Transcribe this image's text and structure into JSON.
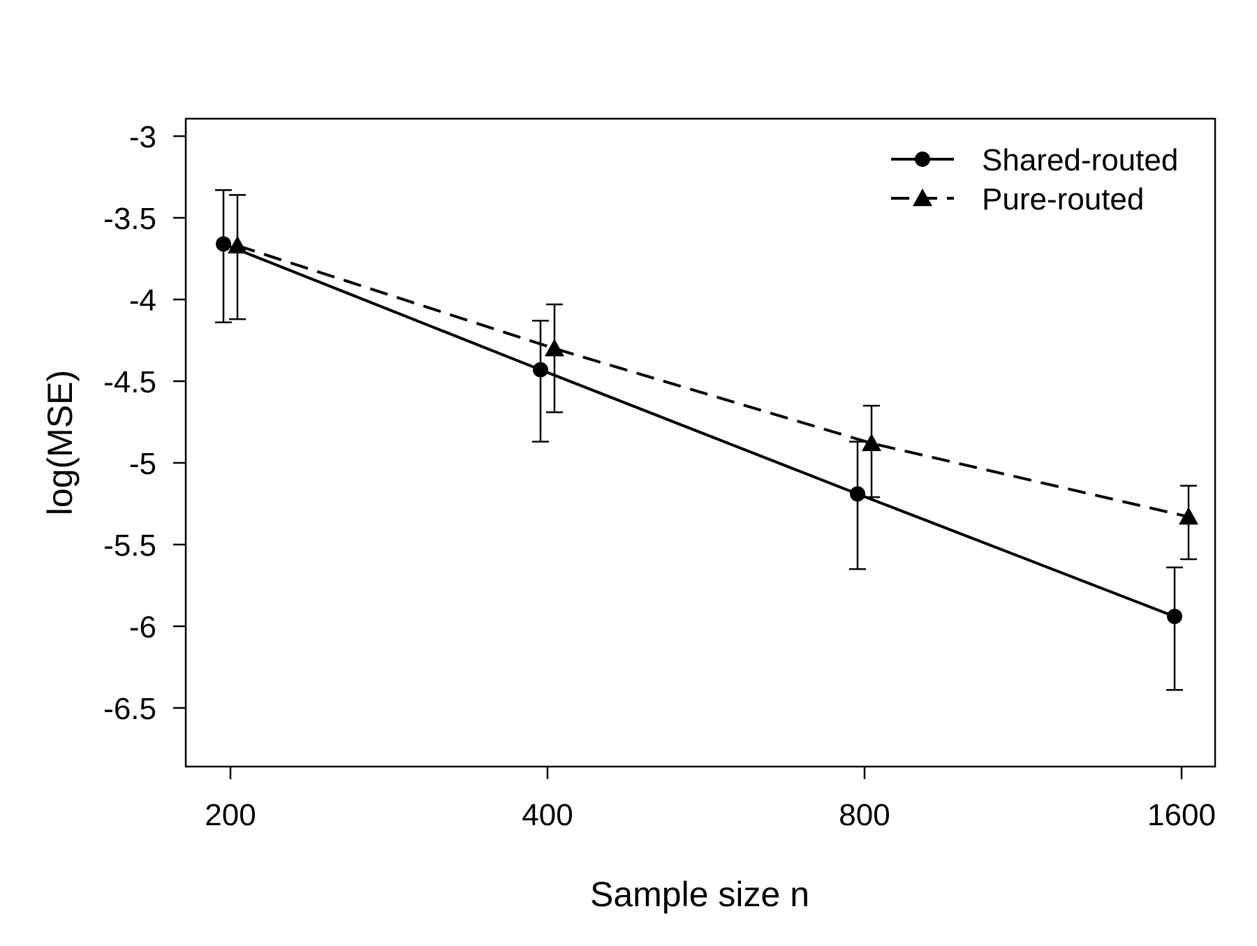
{
  "chart_data": {
    "type": "line",
    "xlabel": "Sample size n",
    "ylabel": "log(MSE)",
    "x_scale": "log2",
    "x": [
      200,
      400,
      800,
      1600
    ],
    "x_tick_labels": [
      "200",
      "400",
      "800",
      "1600"
    ],
    "y_ticks": [
      -3,
      -3.5,
      -4,
      -4.5,
      -5,
      -5.5,
      -6,
      -6.5
    ],
    "y_tick_labels": [
      "-3",
      "-3.5",
      "-4",
      "-4.5",
      "-5",
      "-5.5",
      "-6",
      "-6.5"
    ],
    "ylim": [
      -6.83,
      -2.88
    ],
    "grid": false,
    "legend_position": "top-right",
    "series": [
      {
        "name": "Shared-routed",
        "marker": "circle",
        "line_style": "solid",
        "color": "#000000",
        "values": [
          -3.66,
          -4.43,
          -5.19,
          -5.94
        ],
        "error_lower": [
          -4.14,
          -4.87,
          -5.65,
          -6.39
        ],
        "error_upper": [
          -3.33,
          -4.13,
          -4.87,
          -5.64
        ]
      },
      {
        "name": "Pure-routed",
        "marker": "triangle",
        "line_style": "dashed",
        "color": "#000000",
        "values": [
          -3.67,
          -4.3,
          -4.88,
          -5.33
        ],
        "error_lower": [
          -4.12,
          -4.69,
          -5.21,
          -5.59
        ],
        "error_upper": [
          -3.36,
          -4.03,
          -4.65,
          -5.14
        ]
      }
    ]
  }
}
